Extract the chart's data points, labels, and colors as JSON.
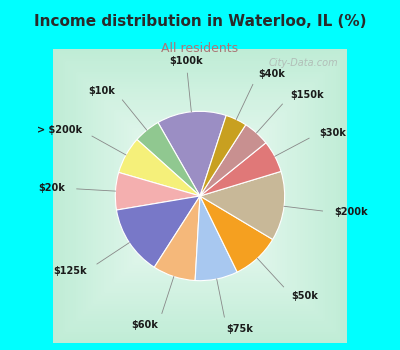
{
  "title": "Income distribution in Waterloo, IL (%)",
  "subtitle": "All residents",
  "title_color": "#2a2a2a",
  "subtitle_color": "#aa7777",
  "background_color": "#00FFFF",
  "inner_bg_color": "#c8eedd",
  "labels": [
    "$100k",
    "$10k",
    "> $200k",
    "$20k",
    "$125k",
    "$60k",
    "$75k",
    "$50k",
    "$200k",
    "$30k",
    "$150k",
    "$40k"
  ],
  "values": [
    13,
    5,
    7,
    7,
    13,
    8,
    8,
    9,
    13,
    6,
    5,
    4
  ],
  "colors": [
    "#9B8EC4",
    "#90C890",
    "#F5F07A",
    "#F4AFAF",
    "#7878C8",
    "#F5B87A",
    "#A8C8F0",
    "#F5A020",
    "#C8B898",
    "#E07878",
    "#C89090",
    "#C8A020"
  ],
  "watermark": "City-Data.com",
  "startangle": 72
}
